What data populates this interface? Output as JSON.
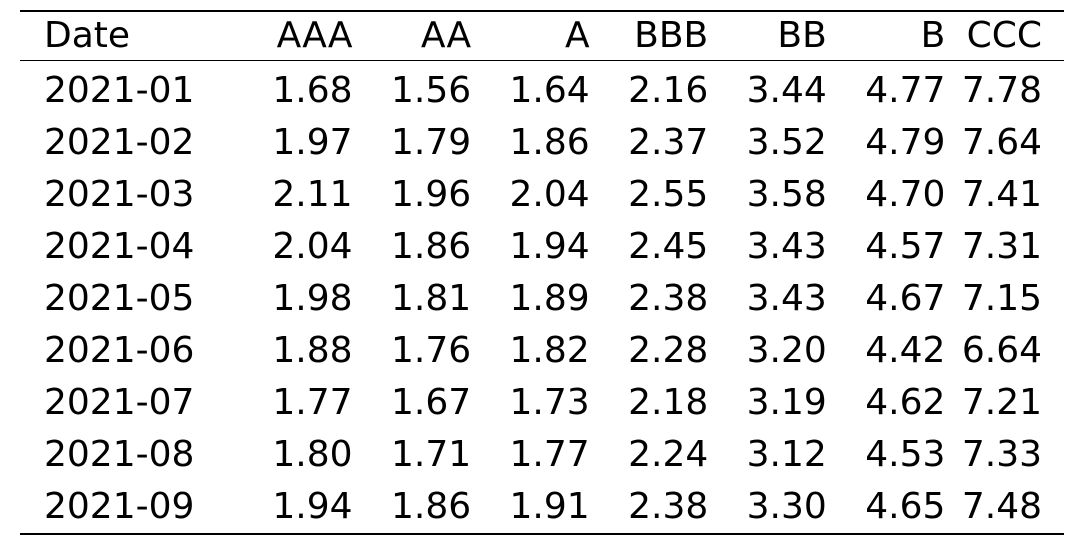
{
  "table": {
    "columns": [
      "Date",
      "AAA",
      "AA",
      "A",
      "BBB",
      "BB",
      "B",
      "CCC"
    ],
    "rows": [
      [
        "2021-01",
        "1.68",
        "1.56",
        "1.64",
        "2.16",
        "3.44",
        "4.77",
        "7.78"
      ],
      [
        "2021-02",
        "1.97",
        "1.79",
        "1.86",
        "2.37",
        "3.52",
        "4.79",
        "7.64"
      ],
      [
        "2021-03",
        "2.11",
        "1.96",
        "2.04",
        "2.55",
        "3.58",
        "4.70",
        "7.41"
      ],
      [
        "2021-04",
        "2.04",
        "1.86",
        "1.94",
        "2.45",
        "3.43",
        "4.57",
        "7.31"
      ],
      [
        "2021-05",
        "1.98",
        "1.81",
        "1.89",
        "2.38",
        "3.43",
        "4.67",
        "7.15"
      ],
      [
        "2021-06",
        "1.88",
        "1.76",
        "1.82",
        "2.28",
        "3.20",
        "4.42",
        "6.64"
      ],
      [
        "2021-07",
        "1.77",
        "1.67",
        "1.73",
        "2.18",
        "3.19",
        "4.62",
        "7.21"
      ],
      [
        "2021-08",
        "1.80",
        "1.71",
        "1.77",
        "2.24",
        "3.12",
        "4.53",
        "7.33"
      ],
      [
        "2021-09",
        "1.94",
        "1.86",
        "1.91",
        "2.38",
        "3.30",
        "4.65",
        "7.48"
      ]
    ]
  }
}
